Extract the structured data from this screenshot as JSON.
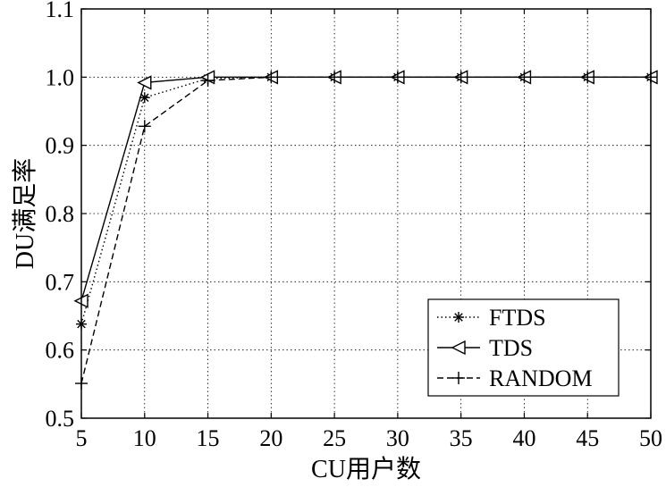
{
  "chart_data": {
    "type": "line",
    "title": "",
    "xlabel": "CU用户数",
    "ylabel": "DU满足率",
    "xlim": [
      5,
      50
    ],
    "ylim": [
      0.5,
      1.1
    ],
    "xticks": [
      5,
      10,
      15,
      20,
      25,
      30,
      35,
      40,
      45,
      50
    ],
    "xtick_labels": [
      "5",
      "10",
      "15",
      "20",
      "25",
      "30",
      "35",
      "40",
      "45",
      "50"
    ],
    "yticks": [
      0.5,
      0.6,
      0.7,
      0.8,
      0.9,
      1.0,
      1.1
    ],
    "ytick_labels": [
      "0.5",
      "0.6",
      "0.7",
      "0.8",
      "0.9",
      "1.0",
      "1.1"
    ],
    "grid": true,
    "legend_position": "bottom-right",
    "x": [
      5,
      10,
      15,
      20,
      25,
      30,
      35,
      40,
      45,
      50
    ],
    "series": [
      {
        "name": "FTDS",
        "values": [
          0.638,
          0.97,
          0.998,
          1.0,
          1.0,
          1.0,
          1.0,
          1.0,
          1.0,
          1.0
        ],
        "line_style": "dotted",
        "marker": "asterisk",
        "color": "#000000"
      },
      {
        "name": "TDS",
        "values": [
          0.672,
          0.992,
          1.0,
          1.0,
          1.0,
          1.0,
          1.0,
          1.0,
          1.0,
          1.0
        ],
        "line_style": "solid",
        "marker": "triangle-left",
        "color": "#000000"
      },
      {
        "name": "RANDOM",
        "values": [
          0.551,
          0.928,
          0.995,
          1.0,
          1.0,
          1.0,
          1.0,
          1.0,
          1.0,
          1.0
        ],
        "line_style": "dashed",
        "marker": "plus",
        "color": "#000000"
      }
    ]
  }
}
